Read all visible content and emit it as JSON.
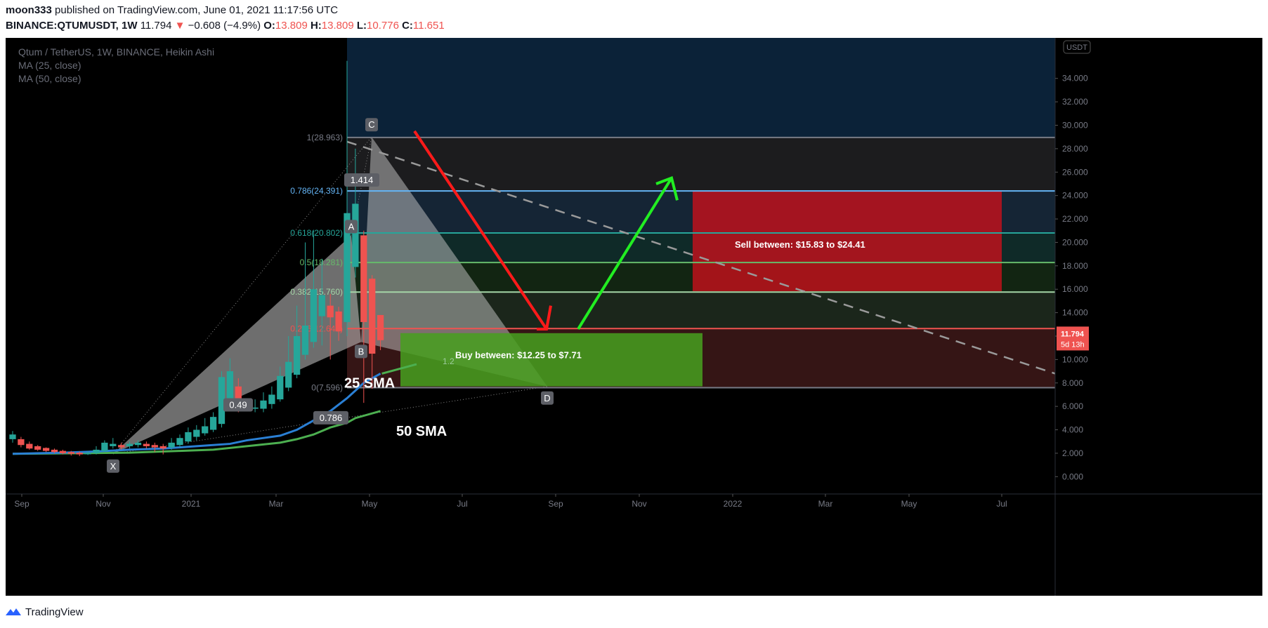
{
  "header": {
    "publisher": "moon333",
    "published_text": "published on TradingView.com, June 01, 2021 11:17:56 UTC",
    "symbol": "BINANCE:QTUMUSDT",
    "interval": "1W",
    "last": "11.794",
    "change_arrow": "▼",
    "change": "−0.608 (−4.9%)",
    "o_label": "O:",
    "o_value": "13.809",
    "h_label": "H:",
    "h_value": "13.809",
    "l_label": "L:",
    "l_value": "10.776",
    "c_label": "C:",
    "c_value": "11.651"
  },
  "legend": {
    "title": "Qtum / TetherUS, 1W, BINANCE, Heikin Ashi",
    "ma1": "MA (25, close)",
    "ma2": "MA (50, close)"
  },
  "colors": {
    "bull": "#26a69a",
    "bear": "#ef5350",
    "ma25": "#2a7fd4",
    "ma50": "#4caf50",
    "arrow_down": "#ff1a1a",
    "arrow_up": "#22ee22"
  },
  "footer": {
    "brand": "TradingView",
    "icon": "tradingview-logo-icon"
  },
  "chart_data": {
    "type": "candlestick",
    "ylim": [
      -1,
      36.5
    ],
    "y_ticks": [
      "34.000",
      "32.000",
      "30.000",
      "28.000",
      "26.000",
      "24.000",
      "22.000",
      "20.000",
      "18.000",
      "16.000",
      "14.000",
      "12.000",
      "10.000",
      "8.000",
      "6.000",
      "4.000",
      "2.000",
      "0.000"
    ],
    "y_axis_unit": "USDT",
    "x_ticks": [
      "Sep",
      "Nov",
      "2021",
      "Mar",
      "May",
      "Jul",
      "Sep",
      "Nov",
      "2022",
      "Mar",
      "May",
      "Jul"
    ],
    "last_price_label": "11.794",
    "countdown_label": "5d 13h",
    "candles": [
      {
        "o": 3.2,
        "c": 3.6,
        "h": 3.9,
        "l": 2.9
      },
      {
        "o": 3.2,
        "c": 2.7,
        "h": 3.4,
        "l": 2.5
      },
      {
        "o": 2.8,
        "c": 2.4,
        "h": 3.0,
        "l": 2.3
      },
      {
        "o": 2.6,
        "c": 2.3,
        "h": 2.7,
        "l": 2.2
      },
      {
        "o": 2.45,
        "c": 2.2,
        "h": 2.5,
        "l": 2.1
      },
      {
        "o": 2.3,
        "c": 2.1,
        "h": 2.4,
        "l": 2.0
      },
      {
        "o": 2.2,
        "c": 2.0,
        "h": 2.3,
        "l": 1.9
      },
      {
        "o": 2.1,
        "c": 1.95,
        "h": 2.2,
        "l": 1.8
      },
      {
        "o": 2.05,
        "c": 1.9,
        "h": 2.15,
        "l": 1.75
      },
      {
        "o": 1.95,
        "c": 2.0,
        "h": 2.2,
        "l": 1.85
      },
      {
        "o": 2.0,
        "c": 2.3,
        "h": 2.6,
        "l": 1.9
      },
      {
        "o": 2.2,
        "c": 2.9,
        "h": 3.1,
        "l": 2.1
      },
      {
        "o": 2.6,
        "c": 2.8,
        "h": 3.3,
        "l": 2.4
      },
      {
        "o": 2.7,
        "c": 2.5,
        "h": 2.9,
        "l": 2.3
      },
      {
        "o": 2.6,
        "c": 2.8,
        "h": 3.0,
        "l": 2.4
      },
      {
        "o": 2.7,
        "c": 2.9,
        "h": 3.1,
        "l": 2.5
      },
      {
        "o": 2.8,
        "c": 2.6,
        "h": 3.0,
        "l": 2.4
      },
      {
        "o": 2.7,
        "c": 2.5,
        "h": 2.9,
        "l": 2.1
      },
      {
        "o": 2.6,
        "c": 2.4,
        "h": 2.8,
        "l": 1.9
      },
      {
        "o": 2.5,
        "c": 2.9,
        "h": 3.3,
        "l": 2.3
      },
      {
        "o": 2.7,
        "c": 3.3,
        "h": 3.6,
        "l": 2.5
      },
      {
        "o": 3.0,
        "c": 3.8,
        "h": 4.2,
        "l": 2.8
      },
      {
        "o": 3.4,
        "c": 4.0,
        "h": 4.4,
        "l": 3.1
      },
      {
        "o": 3.7,
        "c": 4.3,
        "h": 5.0,
        "l": 3.5
      },
      {
        "o": 4.0,
        "c": 5.1,
        "h": 5.5,
        "l": 3.8
      },
      {
        "o": 4.5,
        "c": 8.5,
        "h": 9.0,
        "l": 4.2
      },
      {
        "o": 6.5,
        "c": 9.0,
        "h": 10.1,
        "l": 6.0
      },
      {
        "o": 7.7,
        "c": 6.2,
        "h": 8.4,
        "l": 5.5
      },
      {
        "o": 6.0,
        "c": 6.0,
        "h": 6.5,
        "l": 5.6
      },
      {
        "o": 5.8,
        "c": 5.9,
        "h": 6.6,
        "l": 5.5
      },
      {
        "o": 5.8,
        "c": 6.5,
        "h": 7.2,
        "l": 5.5
      },
      {
        "o": 6.2,
        "c": 7.0,
        "h": 7.7,
        "l": 5.8
      },
      {
        "o": 6.6,
        "c": 8.6,
        "h": 9.4,
        "l": 6.4
      },
      {
        "o": 7.6,
        "c": 9.8,
        "h": 12.0,
        "l": 7.3
      },
      {
        "o": 8.7,
        "c": 12.0,
        "h": 14.6,
        "l": 8.4
      },
      {
        "o": 10.4,
        "c": 12.9,
        "h": 20.0,
        "l": 10.0
      },
      {
        "o": 11.5,
        "c": 16.0,
        "h": 21.0,
        "l": 11.0
      },
      {
        "o": 13.7,
        "c": 15.5,
        "h": 18.6,
        "l": 11.2
      },
      {
        "o": 14.6,
        "c": 13.6,
        "h": 15.6,
        "l": 10.0
      },
      {
        "o": 14.1,
        "c": 12.4,
        "h": 14.5,
        "l": 11.6
      },
      {
        "o": 13.2,
        "c": 22.5,
        "h": 35.5,
        "l": 12.0
      },
      {
        "o": 17.9,
        "c": 23.3,
        "h": 28.0,
        "l": 17.0
      },
      {
        "o": 20.6,
        "c": 13.2,
        "h": 21.0,
        "l": 6.3
      },
      {
        "o": 16.9,
        "c": 10.5,
        "h": 17.2,
        "l": 7.5
      },
      {
        "o": 13.8,
        "c": 11.65,
        "h": 13.8,
        "l": 10.8
      }
    ],
    "ma25": [
      [
        0,
        1.95
      ],
      [
        6,
        2.05
      ],
      [
        10,
        2.15
      ],
      [
        14,
        2.3
      ],
      [
        18,
        2.4
      ],
      [
        22,
        2.6
      ],
      [
        26,
        2.8
      ],
      [
        28,
        3.1
      ],
      [
        32,
        3.5
      ],
      [
        34,
        4.0
      ],
      [
        36,
        4.8
      ],
      [
        38,
        5.6
      ],
      [
        40,
        6.7
      ],
      [
        42,
        8.0
      ],
      [
        44,
        8.8
      ]
    ],
    "ma50": [
      [
        0,
        1.95
      ],
      [
        8,
        2.0
      ],
      [
        14,
        2.05
      ],
      [
        20,
        2.2
      ],
      [
        24,
        2.3
      ],
      [
        28,
        2.6
      ],
      [
        32,
        2.9
      ],
      [
        34,
        3.2
      ],
      [
        36,
        3.6
      ],
      [
        38,
        4.2
      ],
      [
        40,
        4.6
      ],
      [
        41,
        5.0
      ],
      [
        44,
        5.6
      ]
    ],
    "fib_levels": [
      {
        "label": "1(28.963)",
        "value": 28.963,
        "color": "#787b86"
      },
      {
        "label": "0.786(24.391)",
        "value": 24.391,
        "color": "#64b5f6"
      },
      {
        "label": "0.618(20.802)",
        "value": 20.802,
        "color": "#26a69a"
      },
      {
        "label": "0.5(18.281)",
        "value": 18.281,
        "color": "#66bb6a"
      },
      {
        "label": "0.382(15.760)",
        "value": 15.76,
        "color": "#a5d6a7"
      },
      {
        "label": "0.236(12.640)",
        "value": 12.64,
        "color": "#ef5350"
      },
      {
        "label": "0(7.596)",
        "value": 7.596,
        "color": "#787b86"
      }
    ],
    "pattern_points": {
      "X": "X",
      "A": "A",
      "B": "B",
      "C": "C",
      "D": "D"
    },
    "pattern_ratios": [
      "0.49",
      "1.414",
      "0.786",
      "1.2"
    ],
    "annotations": {
      "sell": "Sell between: $15.83 to $24.41",
      "buy": "Buy between: $12.25 to $7.71",
      "sma25": "25 SMA",
      "sma50": "50 SMA"
    }
  }
}
